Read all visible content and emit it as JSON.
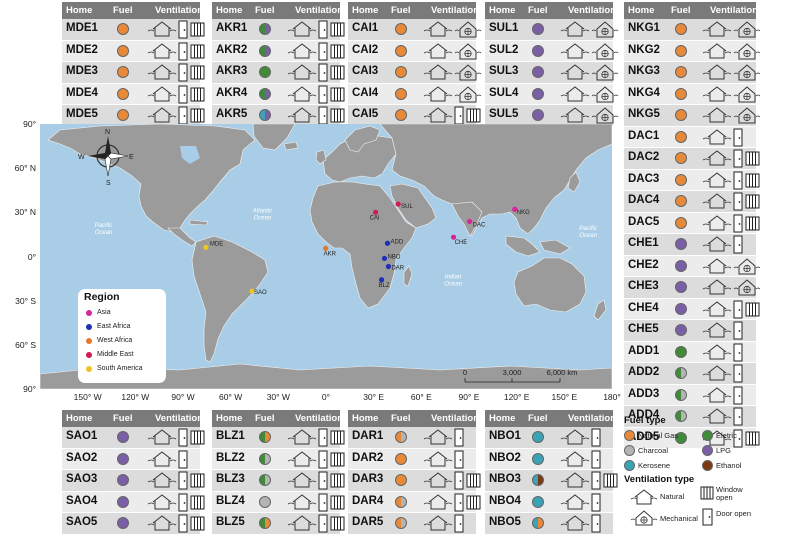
{
  "headers": {
    "home": "Home",
    "fuel": "Fuel",
    "ventilation": "Ventilation"
  },
  "colors": {
    "ng": "#e8893a",
    "lpg": "#7b5fa6",
    "elec": "#3e8c3a",
    "char": "#b4b4b4",
    "kero": "#3aa3b5",
    "eth": "#7b3a14"
  },
  "tables": [
    {
      "id": "MDE",
      "rows": [
        {
          "code": "MDE1",
          "fuel": [
            "ng"
          ],
          "vent": [
            "nat",
            "door",
            "win"
          ]
        },
        {
          "code": "MDE2",
          "fuel": [
            "ng"
          ],
          "vent": [
            "nat",
            "door",
            "win"
          ]
        },
        {
          "code": "MDE3",
          "fuel": [
            "ng"
          ],
          "vent": [
            "nat",
            "door",
            "win"
          ]
        },
        {
          "code": "MDE4",
          "fuel": [
            "ng"
          ],
          "vent": [
            "nat",
            "door",
            "win"
          ]
        },
        {
          "code": "MDE5",
          "fuel": [
            "ng"
          ],
          "vent": [
            "nat",
            "door",
            "win"
          ]
        }
      ]
    },
    {
      "id": "AKR",
      "rows": [
        {
          "code": "AKR1",
          "fuel": [
            "elec",
            "lpg"
          ],
          "vent": [
            "nat",
            "door",
            "win"
          ]
        },
        {
          "code": "AKR2",
          "fuel": [
            "elec",
            "lpg"
          ],
          "vent": [
            "nat",
            "door",
            "win"
          ]
        },
        {
          "code": "AKR3",
          "fuel": [
            "elec"
          ],
          "vent": [
            "nat",
            "door",
            "win"
          ]
        },
        {
          "code": "AKR4",
          "fuel": [
            "elec",
            "lpg"
          ],
          "vent": [
            "nat",
            "door",
            "win"
          ]
        },
        {
          "code": "AKR5",
          "fuel": [
            "kero",
            "lpg"
          ],
          "vent": [
            "nat",
            "door",
            "win"
          ]
        }
      ]
    },
    {
      "id": "CAI",
      "rows": [
        {
          "code": "CAI1",
          "fuel": [
            "ng"
          ],
          "vent": [
            "nat",
            "mech"
          ]
        },
        {
          "code": "CAI2",
          "fuel": [
            "ng"
          ],
          "vent": [
            "nat",
            "mech"
          ]
        },
        {
          "code": "CAI3",
          "fuel": [
            "ng"
          ],
          "vent": [
            "nat",
            "mech"
          ]
        },
        {
          "code": "CAI4",
          "fuel": [
            "ng"
          ],
          "vent": [
            "nat",
            "mech"
          ]
        },
        {
          "code": "CAI5",
          "fuel": [
            "ng"
          ],
          "vent": [
            "nat",
            "door",
            "win"
          ]
        }
      ]
    },
    {
      "id": "SUL",
      "rows": [
        {
          "code": "SUL1",
          "fuel": [
            "lpg"
          ],
          "vent": [
            "nat",
            "mech"
          ]
        },
        {
          "code": "SUL2",
          "fuel": [
            "lpg"
          ],
          "vent": [
            "nat",
            "mech"
          ]
        },
        {
          "code": "SUL3",
          "fuel": [
            "lpg"
          ],
          "vent": [
            "nat",
            "mech"
          ]
        },
        {
          "code": "SUL4",
          "fuel": [
            "lpg"
          ],
          "vent": [
            "nat",
            "mech"
          ]
        },
        {
          "code": "SUL5",
          "fuel": [
            "lpg"
          ],
          "vent": [
            "nat",
            "mech"
          ]
        }
      ]
    },
    {
      "id": "NKG",
      "rows": [
        {
          "code": "NKG1",
          "fuel": [
            "ng"
          ],
          "vent": [
            "nat",
            "mech"
          ]
        },
        {
          "code": "NKG2",
          "fuel": [
            "ng"
          ],
          "vent": [
            "nat",
            "mech"
          ]
        },
        {
          "code": "NKG3",
          "fuel": [
            "ng"
          ],
          "vent": [
            "nat",
            "mech"
          ]
        },
        {
          "code": "NKG4",
          "fuel": [
            "ng"
          ],
          "vent": [
            "nat",
            "mech"
          ]
        },
        {
          "code": "NKG5",
          "fuel": [
            "ng"
          ],
          "vent": [
            "nat",
            "mech"
          ]
        },
        {
          "code": "DAC1",
          "fuel": [
            "ng"
          ],
          "vent": [
            "nat",
            "door"
          ]
        },
        {
          "code": "DAC2",
          "fuel": [
            "ng"
          ],
          "vent": [
            "nat",
            "door",
            "win"
          ]
        },
        {
          "code": "DAC3",
          "fuel": [
            "ng"
          ],
          "vent": [
            "nat",
            "door",
            "win"
          ]
        },
        {
          "code": "DAC4",
          "fuel": [
            "ng"
          ],
          "vent": [
            "nat",
            "door",
            "win"
          ]
        },
        {
          "code": "DAC5",
          "fuel": [
            "ng"
          ],
          "vent": [
            "nat",
            "door",
            "win"
          ]
        },
        {
          "code": "CHE1",
          "fuel": [
            "lpg"
          ],
          "vent": [
            "nat",
            "door"
          ]
        },
        {
          "code": "CHE2",
          "fuel": [
            "lpg"
          ],
          "vent": [
            "nat",
            "mech"
          ]
        },
        {
          "code": "CHE3",
          "fuel": [
            "lpg"
          ],
          "vent": [
            "nat",
            "mech"
          ]
        },
        {
          "code": "CHE4",
          "fuel": [
            "lpg"
          ],
          "vent": [
            "nat",
            "door",
            "win"
          ]
        },
        {
          "code": "CHE5",
          "fuel": [
            "lpg"
          ],
          "vent": [
            "nat",
            "door"
          ]
        },
        {
          "code": "ADD1",
          "fuel": [
            "elec"
          ],
          "vent": [
            "nat",
            "door"
          ]
        },
        {
          "code": "ADD2",
          "fuel": [
            "elec",
            "char"
          ],
          "vent": [
            "nat",
            "door"
          ]
        },
        {
          "code": "ADD3",
          "fuel": [
            "elec",
            "char"
          ],
          "vent": [
            "nat",
            "door"
          ]
        },
        {
          "code": "ADD4",
          "fuel": [
            "elec",
            "char"
          ],
          "vent": [
            "nat",
            "door"
          ]
        },
        {
          "code": "ADD5",
          "fuel": [
            "elec"
          ],
          "vent": [
            "nat",
            "door",
            "win"
          ]
        }
      ]
    },
    {
      "id": "SAO",
      "rows": [
        {
          "code": "SAO1",
          "fuel": [
            "lpg"
          ],
          "vent": [
            "nat",
            "door",
            "win"
          ]
        },
        {
          "code": "SAO2",
          "fuel": [
            "lpg"
          ],
          "vent": [
            "nat",
            "door"
          ]
        },
        {
          "code": "SAO3",
          "fuel": [
            "lpg"
          ],
          "vent": [
            "nat",
            "door",
            "win"
          ]
        },
        {
          "code": "SAO4",
          "fuel": [
            "lpg"
          ],
          "vent": [
            "nat",
            "door",
            "win"
          ]
        },
        {
          "code": "SAO5",
          "fuel": [
            "lpg"
          ],
          "vent": [
            "nat",
            "door",
            "win"
          ]
        }
      ]
    },
    {
      "id": "BLZ",
      "rows": [
        {
          "code": "BLZ1",
          "fuel": [
            "elec",
            "ng"
          ],
          "vent": [
            "nat",
            "door",
            "win"
          ]
        },
        {
          "code": "BLZ2",
          "fuel": [
            "elec",
            "char"
          ],
          "vent": [
            "nat",
            "door",
            "win"
          ]
        },
        {
          "code": "BLZ3",
          "fuel": [
            "elec",
            "char"
          ],
          "vent": [
            "nat",
            "door",
            "win"
          ]
        },
        {
          "code": "BLZ4",
          "fuel": [
            "char"
          ],
          "vent": [
            "nat",
            "door",
            "win"
          ]
        },
        {
          "code": "BLZ5",
          "fuel": [
            "elec",
            "ng"
          ],
          "vent": [
            "nat",
            "door",
            "win"
          ]
        }
      ]
    },
    {
      "id": "DAR",
      "rows": [
        {
          "code": "DAR1",
          "fuel": [
            "ng",
            "char"
          ],
          "vent": [
            "nat",
            "door"
          ]
        },
        {
          "code": "DAR2",
          "fuel": [
            "ng"
          ],
          "vent": [
            "nat",
            "door"
          ]
        },
        {
          "code": "DAR3",
          "fuel": [
            "ng"
          ],
          "vent": [
            "nat",
            "door",
            "win"
          ]
        },
        {
          "code": "DAR4",
          "fuel": [
            "ng",
            "char"
          ],
          "vent": [
            "nat",
            "door",
            "win"
          ]
        },
        {
          "code": "DAR5",
          "fuel": [
            "ng",
            "char"
          ],
          "vent": [
            "nat",
            "door"
          ]
        }
      ]
    },
    {
      "id": "NBO",
      "rows": [
        {
          "code": "NBO1",
          "fuel": [
            "kero"
          ],
          "vent": [
            "nat",
            "door"
          ]
        },
        {
          "code": "NBO2",
          "fuel": [
            "kero"
          ],
          "vent": [
            "nat",
            "door"
          ]
        },
        {
          "code": "NBO3",
          "fuel": [
            "kero",
            "eth"
          ],
          "vent": [
            "nat",
            "door",
            "win"
          ]
        },
        {
          "code": "NBO4",
          "fuel": [
            "kero"
          ],
          "vent": [
            "nat",
            "door"
          ]
        },
        {
          "code": "NBO5",
          "fuel": [
            "kero",
            "ng"
          ],
          "vent": [
            "nat",
            "door"
          ]
        }
      ]
    }
  ],
  "map": {
    "lat_labels": [
      "90°",
      "60° N",
      "30° N",
      "0°",
      "30° S",
      "60° S",
      "90°"
    ],
    "lon_labels": [
      "150° W",
      "120° W",
      "90° W",
      "60° W",
      "30° W",
      "0°",
      "30° E",
      "60° E",
      "90° E",
      "120° E",
      "150° E",
      "180°"
    ],
    "compass": {
      "n": "N",
      "s": "S",
      "e": "E",
      "w": "W"
    },
    "scale": {
      "t0": "0",
      "t1": "3,000",
      "t2": "6,000 km"
    },
    "oceans": [
      {
        "name": "Pacific Ocean",
        "lat": 20,
        "lon": -140
      },
      {
        "name": "Atlantic Ocean",
        "lat": 30,
        "lon": -40
      },
      {
        "name": "Indian Ocean",
        "lat": -15,
        "lon": 80
      },
      {
        "name": "Pacific Ocean",
        "lat": 18,
        "lon": 165
      }
    ],
    "sites": [
      {
        "code": "MDE",
        "lat": 6.2,
        "lon": -75.6,
        "region": "sa",
        "lx": 4,
        "ly": -2
      },
      {
        "code": "SAO",
        "lat": -23.5,
        "lon": -46.6,
        "region": "sa",
        "lx": 2,
        "ly": 3
      },
      {
        "code": "AKR",
        "lat": 5.6,
        "lon": -0.2,
        "region": "wa",
        "lx": -2,
        "ly": 7
      },
      {
        "code": "CAI",
        "lat": 30.0,
        "lon": 31.2,
        "region": "me",
        "lx": -6,
        "ly": 7
      },
      {
        "code": "SUL",
        "lat": 35.6,
        "lon": 45.4,
        "region": "me",
        "lx": 3,
        "ly": 4
      },
      {
        "code": "ADD",
        "lat": 9.0,
        "lon": 38.7,
        "region": "ea",
        "lx": 3,
        "ly": 0
      },
      {
        "code": "NBO",
        "lat": -1.3,
        "lon": 36.8,
        "region": "ea",
        "lx": 3,
        "ly": 0
      },
      {
        "code": "DAR",
        "lat": -6.8,
        "lon": 39.3,
        "region": "ea",
        "lx": 3,
        "ly": 3
      },
      {
        "code": "BLZ",
        "lat": -15.8,
        "lon": 35.0,
        "region": "ea",
        "lx": -3,
        "ly": 7
      },
      {
        "code": "DAC",
        "lat": 23.8,
        "lon": 90.4,
        "region": "as",
        "lx": 3,
        "ly": 5
      },
      {
        "code": "CHE",
        "lat": 13.1,
        "lon": 80.3,
        "region": "as",
        "lx": 1,
        "ly": 7
      },
      {
        "code": "NKG",
        "lat": 32.1,
        "lon": 118.8,
        "region": "as",
        "lx": 2,
        "ly": 5
      }
    ],
    "region_colors": {
      "as": "#d9239b",
      "ea": "#1f2fb8",
      "wa": "#e8772a",
      "me": "#d01c50",
      "sa": "#f0c420"
    }
  },
  "legend": {
    "title": "Region",
    "items": [
      {
        "label": "Asia",
        "color": "#d9239b"
      },
      {
        "label": "East Africa",
        "color": "#1f2fb8"
      },
      {
        "label": "West Africa",
        "color": "#e8772a"
      },
      {
        "label": "Middle East",
        "color": "#d01c50"
      },
      {
        "label": "South America",
        "color": "#f0c420"
      }
    ]
  },
  "key": {
    "fuel_title": "Fuel type",
    "fuel_items": [
      {
        "label": "Natural Gas",
        "color": "#e8893a"
      },
      {
        "label": "Eletric",
        "color": "#3e8c3a"
      },
      {
        "label": "Charcoal",
        "color": "#b4b4b4"
      },
      {
        "label": "LPG",
        "color": "#7b5fa6"
      },
      {
        "label": "Kerosene",
        "color": "#3aa3b5"
      },
      {
        "label": "Ethanol",
        "color": "#7b3a14"
      }
    ],
    "vent_title": "Ventilation type",
    "vent_natural": "Natural",
    "vent_mechanical": "Mechanical",
    "vent_window": "Window open",
    "vent_door": "Door open"
  }
}
